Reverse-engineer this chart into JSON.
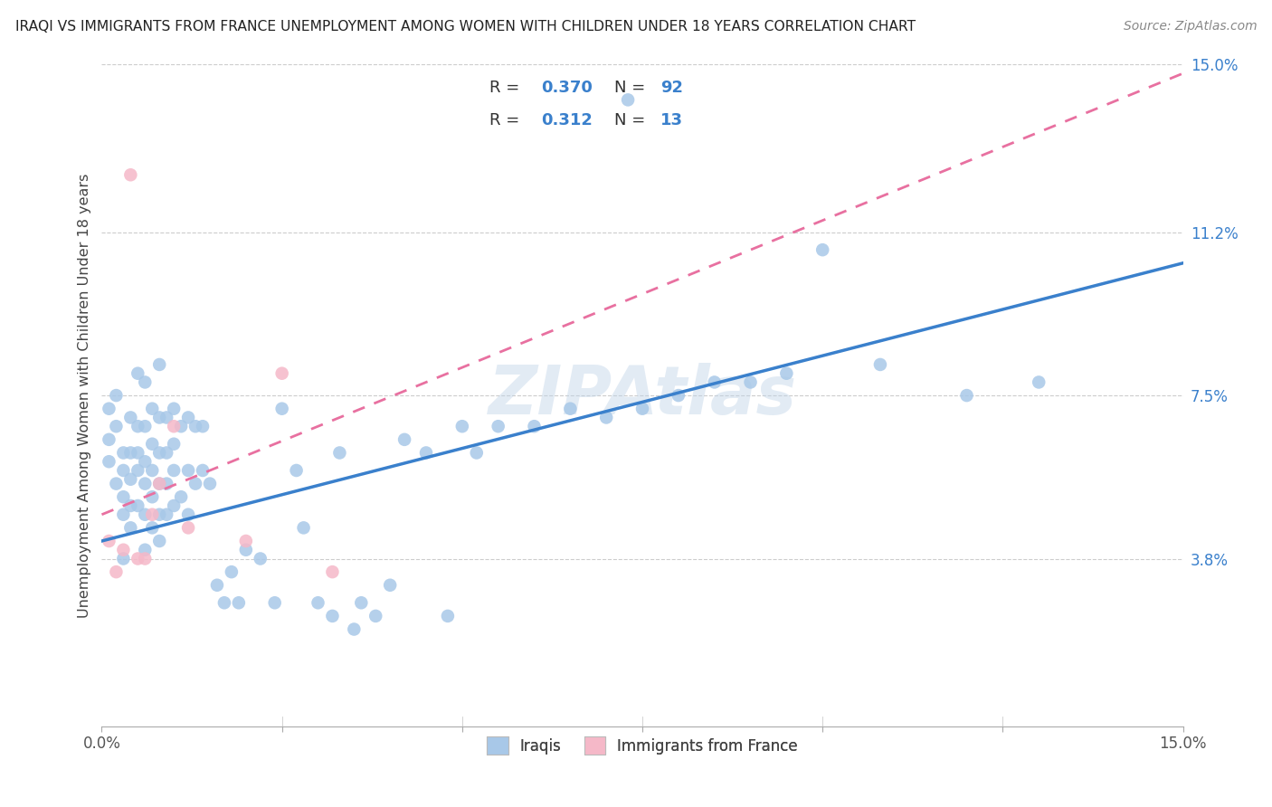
{
  "title": "IRAQI VS IMMIGRANTS FROM FRANCE UNEMPLOYMENT AMONG WOMEN WITH CHILDREN UNDER 18 YEARS CORRELATION CHART",
  "source": "Source: ZipAtlas.com",
  "ylabel": "Unemployment Among Women with Children Under 18 years",
  "xlim": [
    0.0,
    0.15
  ],
  "ylim": [
    0.0,
    0.15
  ],
  "ytick_positions": [
    0.038,
    0.075,
    0.112,
    0.15
  ],
  "ytick_labels": [
    "3.8%",
    "7.5%",
    "11.2%",
    "15.0%"
  ],
  "watermark": "ZIPAtlas",
  "legend_R1": "0.370",
  "legend_N1": "92",
  "legend_R2": "0.312",
  "legend_N2": "13",
  "color_iraqi": "#a8c8e8",
  "color_france": "#f5b8c8",
  "color_line_iraqi": "#3a80cc",
  "color_line_france": "#e870a0",
  "legend_label1": "Iraqis",
  "legend_label2": "Immigrants from France",
  "iraqi_line_x0": 0.0,
  "iraqi_line_y0": 0.042,
  "iraqi_line_x1": 0.15,
  "iraqi_line_y1": 0.105,
  "france_line_x0": 0.0,
  "france_line_y0": 0.048,
  "france_line_x1": 0.15,
  "france_line_y1": 0.148,
  "iraqi_x": [
    0.001,
    0.001,
    0.001,
    0.002,
    0.002,
    0.002,
    0.003,
    0.003,
    0.003,
    0.003,
    0.003,
    0.004,
    0.004,
    0.004,
    0.004,
    0.004,
    0.005,
    0.005,
    0.005,
    0.005,
    0.005,
    0.006,
    0.006,
    0.006,
    0.006,
    0.006,
    0.006,
    0.007,
    0.007,
    0.007,
    0.007,
    0.007,
    0.008,
    0.008,
    0.008,
    0.008,
    0.008,
    0.008,
    0.009,
    0.009,
    0.009,
    0.009,
    0.01,
    0.01,
    0.01,
    0.01,
    0.011,
    0.011,
    0.012,
    0.012,
    0.012,
    0.013,
    0.013,
    0.014,
    0.014,
    0.015,
    0.016,
    0.017,
    0.018,
    0.019,
    0.02,
    0.022,
    0.024,
    0.025,
    0.027,
    0.028,
    0.03,
    0.032,
    0.033,
    0.035,
    0.036,
    0.038,
    0.04,
    0.042,
    0.045,
    0.048,
    0.05,
    0.052,
    0.055,
    0.06,
    0.065,
    0.07,
    0.073,
    0.075,
    0.08,
    0.085,
    0.09,
    0.095,
    0.1,
    0.108,
    0.12,
    0.13
  ],
  "iraqi_y": [
    0.06,
    0.065,
    0.072,
    0.055,
    0.068,
    0.075,
    0.048,
    0.052,
    0.058,
    0.062,
    0.038,
    0.05,
    0.056,
    0.062,
    0.07,
    0.045,
    0.058,
    0.062,
    0.068,
    0.05,
    0.08,
    0.04,
    0.048,
    0.055,
    0.06,
    0.068,
    0.078,
    0.045,
    0.052,
    0.058,
    0.064,
    0.072,
    0.042,
    0.048,
    0.055,
    0.062,
    0.07,
    0.082,
    0.048,
    0.055,
    0.062,
    0.07,
    0.05,
    0.058,
    0.064,
    0.072,
    0.052,
    0.068,
    0.048,
    0.058,
    0.07,
    0.055,
    0.068,
    0.058,
    0.068,
    0.055,
    0.032,
    0.028,
    0.035,
    0.028,
    0.04,
    0.038,
    0.028,
    0.072,
    0.058,
    0.045,
    0.028,
    0.025,
    0.062,
    0.022,
    0.028,
    0.025,
    0.032,
    0.065,
    0.062,
    0.025,
    0.068,
    0.062,
    0.068,
    0.068,
    0.072,
    0.07,
    0.142,
    0.072,
    0.075,
    0.078,
    0.078,
    0.08,
    0.108,
    0.082,
    0.075,
    0.078
  ],
  "france_x": [
    0.001,
    0.002,
    0.003,
    0.004,
    0.005,
    0.006,
    0.007,
    0.008,
    0.01,
    0.012,
    0.02,
    0.025,
    0.032
  ],
  "france_y": [
    0.042,
    0.035,
    0.04,
    0.125,
    0.038,
    0.038,
    0.048,
    0.055,
    0.068,
    0.045,
    0.042,
    0.08,
    0.035
  ]
}
